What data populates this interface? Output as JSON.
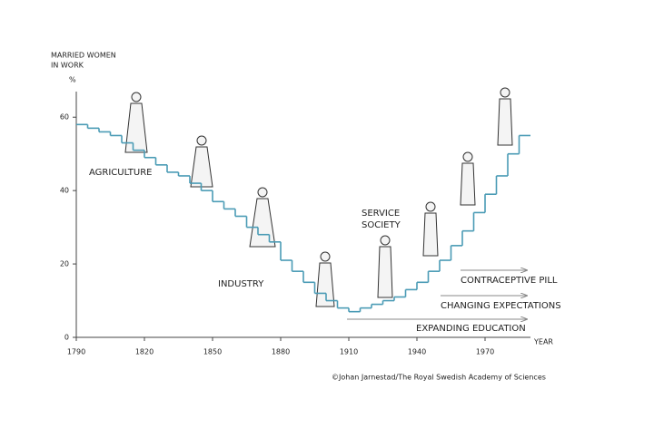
{
  "chart_data": {
    "type": "step",
    "y_label_lines": [
      "MARRIED WOMEN",
      "IN WORK"
    ],
    "y_unit": "%",
    "x_label": "YEAR",
    "credit": "©Johan Jarnestad/The Royal Swedish Academy of Sciences",
    "annotations": {
      "agriculture": "AGRICULTURE",
      "industry": "INDUSTRY",
      "service": [
        "SERVICE",
        "SOCIETY"
      ],
      "pill": "CONTRACEPTIVE PILL",
      "expectations": "CHANGING EXPECTATIONS",
      "education": "EXPANDING EDUCATION"
    },
    "series": [
      {
        "name": "Married women in work",
        "color": "#4a9bb5",
        "x": [
          1790,
          1795,
          1800,
          1805,
          1810,
          1815,
          1820,
          1825,
          1830,
          1835,
          1840,
          1845,
          1850,
          1855,
          1860,
          1865,
          1870,
          1875,
          1880,
          1885,
          1890,
          1895,
          1900,
          1905,
          1910,
          1915,
          1920,
          1925,
          1930,
          1935,
          1940,
          1945,
          1950,
          1955,
          1960,
          1965,
          1970,
          1975,
          1980,
          1985
        ],
        "values": [
          58,
          57,
          56,
          55,
          53,
          51,
          49,
          47,
          45,
          44,
          42,
          40,
          37,
          35,
          33,
          30,
          28,
          26,
          21,
          18,
          15,
          12,
          10,
          8,
          7,
          8,
          9,
          10,
          11,
          13,
          15,
          18,
          21,
          25,
          29,
          34,
          39,
          44,
          50,
          55
        ]
      }
    ],
    "xlim": [
      1790,
      1990
    ],
    "xticks": [
      1790,
      1820,
      1850,
      1880,
      1910,
      1940,
      1970
    ],
    "ylim": [
      0,
      65
    ],
    "yticks": [
      0,
      20,
      40,
      60
    ]
  }
}
